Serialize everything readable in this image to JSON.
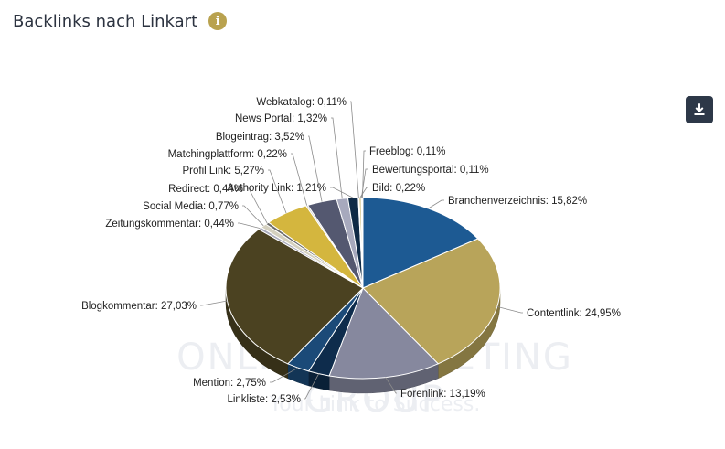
{
  "header": {
    "title": "Backlinks nach Linkart"
  },
  "icons": {
    "info": "info-icon",
    "download": "download-icon"
  },
  "watermark": {
    "brand": "ONLINE MARKETING GROUP",
    "slogan": "Your Link to Success."
  },
  "chart_data": {
    "type": "pie",
    "title": "",
    "slices": [
      {
        "name": "Branchenverzeichnis",
        "label": "Branchenverzeichnis: 15,82%",
        "value": 15.82,
        "color": "#1d5a93"
      },
      {
        "name": "Contentlink",
        "label": "Contentlink: 24,95%",
        "value": 24.95,
        "color": "#b8a45a"
      },
      {
        "name": "Forenlink",
        "label": "Forenlink: 13,19%",
        "value": 13.19,
        "color": "#86889e"
      },
      {
        "name": "Linkliste",
        "label": "Linkliste: 2,53%",
        "value": 2.53,
        "color": "#0e2c4c"
      },
      {
        "name": "Mention",
        "label": "Mention: 2,75%",
        "value": 2.75,
        "color": "#1b4a78"
      },
      {
        "name": "Blogkommentar",
        "label": "Blogkommentar: 27,03%",
        "value": 27.03,
        "color": "#4b4221"
      },
      {
        "name": "Zeitungskommentar",
        "label": "Zeitungskommentar: 0,44%",
        "value": 0.44,
        "color": "#a8a9ba"
      },
      {
        "name": "Social Media",
        "label": "Social Media: 0,77%",
        "value": 0.77,
        "color": "#d4d0bf"
      },
      {
        "name": "Redirect",
        "label": "Redirect: 0,44%",
        "value": 0.44,
        "color": "#6a6a6a"
      },
      {
        "name": "Profil Link",
        "label": "Profil Link: 5,27%",
        "value": 5.27,
        "color": "#d4b63e"
      },
      {
        "name": "Matchingplattform",
        "label": "Matchingplattform: 0,22%",
        "value": 0.22,
        "color": "#c9c9c9"
      },
      {
        "name": "Blogeintrag",
        "label": "Blogeintrag: 3,52%",
        "value": 3.52,
        "color": "#545870"
      },
      {
        "name": "News Portal",
        "label": "News Portal: 1,32%",
        "value": 1.32,
        "color": "#a7a9bd"
      },
      {
        "name": "Authority Link",
        "label": "Authority Link: 1,21%",
        "value": 1.21,
        "color": "#0f2a46"
      },
      {
        "name": "Webkatalog",
        "label": "Webkatalog: 0,11%",
        "value": 0.11,
        "color": "#7d7f93"
      },
      {
        "name": "Bild",
        "label": "Bild: 0,22%",
        "value": 0.22,
        "color": "#c9b46a"
      },
      {
        "name": "Bewertungsportal",
        "label": "Bewertungsportal: 0,11%",
        "value": 0.11,
        "color": "#8a8a8a"
      },
      {
        "name": "Freeblog",
        "label": "Freeblog: 0,11%",
        "value": 0.11,
        "color": "#b0b0b0"
      }
    ],
    "legend": "none"
  }
}
